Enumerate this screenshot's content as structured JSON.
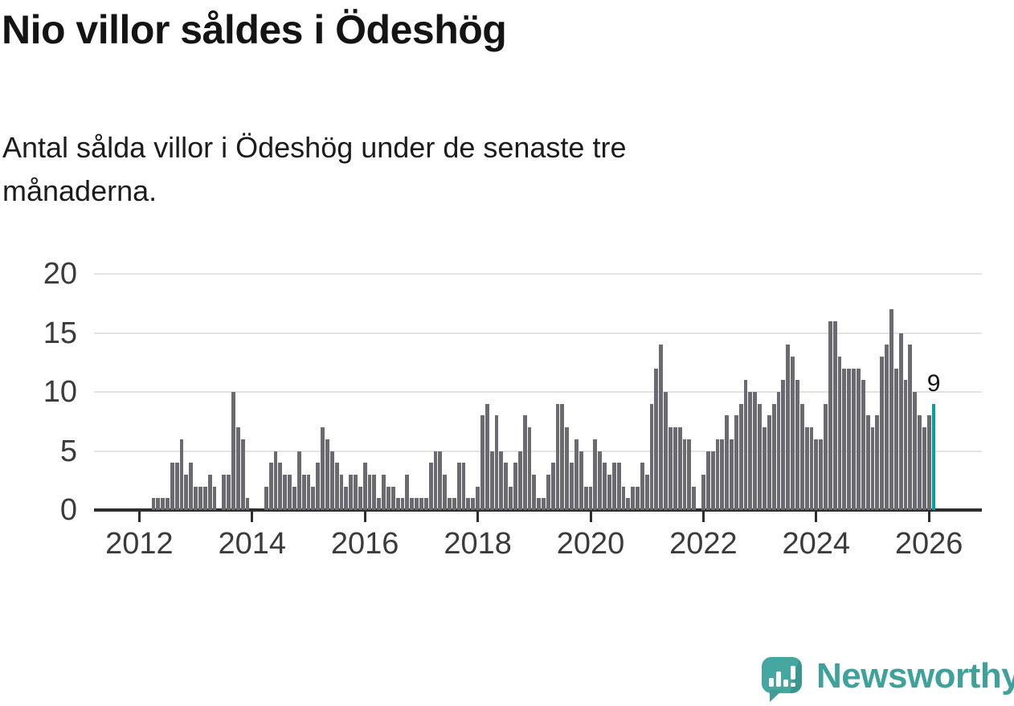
{
  "header": {
    "title": "Nio villor såldes i Ödeshög",
    "subtitle": "Antal sålda villor i Ödeshög under de senaste tre månaderna.",
    "subtitle_lines": [
      "Antal sålda villor i Ödeshög under de senaste tre",
      "månaderna."
    ]
  },
  "chart_data": {
    "type": "bar",
    "title": "Nio villor såldes i Ödeshög",
    "subtitle": "Antal sålda villor i Ödeshög under de senaste tre månaderna.",
    "x_frequency": "monthly",
    "x_start": "2012-01",
    "x_end": "2026-02",
    "values": [
      0,
      0,
      0,
      1,
      1,
      1,
      1,
      4,
      4,
      6,
      3,
      4,
      2,
      2,
      2,
      3,
      2,
      0,
      3,
      3,
      10,
      7,
      6,
      1,
      0,
      0,
      0,
      2,
      4,
      5,
      4,
      3,
      3,
      2,
      5,
      3,
      3,
      2,
      4,
      7,
      6,
      5,
      4,
      3,
      2,
      3,
      3,
      2,
      4,
      3,
      3,
      1,
      3,
      2,
      2,
      1,
      1,
      3,
      1,
      1,
      1,
      1,
      4,
      5,
      5,
      3,
      1,
      1,
      4,
      4,
      1,
      1,
      2,
      8,
      9,
      5,
      8,
      5,
      4,
      2,
      4,
      5,
      8,
      7,
      3,
      1,
      1,
      3,
      4,
      9,
      9,
      7,
      4,
      6,
      5,
      2,
      2,
      6,
      5,
      4,
      3,
      4,
      4,
      2,
      1,
      2,
      2,
      4,
      3,
      9,
      12,
      14,
      10,
      7,
      7,
      7,
      6,
      6,
      2,
      0,
      3,
      5,
      5,
      6,
      6,
      8,
      6,
      8,
      9,
      11,
      10,
      10,
      9,
      7,
      8,
      9,
      10,
      11,
      14,
      13,
      11,
      9,
      7,
      7,
      6,
      6,
      9,
      16,
      16,
      13,
      12,
      12,
      12,
      12,
      11,
      8,
      7,
      8,
      13,
      14,
      17,
      12,
      15,
      11,
      14,
      10,
      8,
      7,
      8,
      9
    ],
    "highlight_index": 169,
    "highlight_label": "9",
    "ylim": [
      0,
      20
    ],
    "yticks": [
      0,
      5,
      10,
      15,
      20
    ],
    "xticks": [
      2012,
      2014,
      2016,
      2018,
      2020,
      2022,
      2024,
      2026
    ],
    "grid": true,
    "legend": false,
    "bar_color": "#6a6a70",
    "highlight_color": "#00a0a5",
    "axis_color": "#2d2d2d",
    "gridline_color": "#e3e3e3",
    "tick_label_color": "#3b3b3b"
  },
  "footer": {
    "brand": "Newsworthy",
    "logo_icon": "newsworthy-speech-bubble-chart-icon",
    "brand_color": "#3fa19c"
  }
}
